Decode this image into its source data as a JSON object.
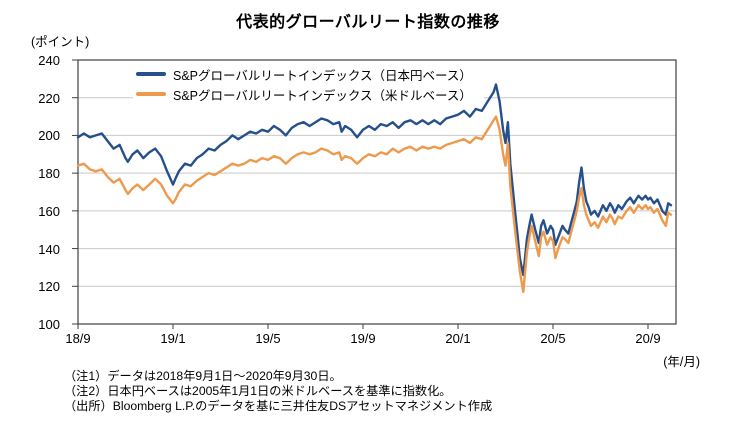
{
  "title": "代表的グローバルリート指数の推移",
  "y_unit_label": "(ポイント)",
  "x_unit_label": "(年/月)",
  "notes": [
    "（注1）データは2018年9月1日～2020年9月30日。",
    "（注2）日本円ベースは2005年1月1日の米ドルベースを基準に指数化。",
    "（出所）Bloomberg L.P.のデータを基に三井住友DSアセットマネジメント作成"
  ],
  "colors": {
    "jpy_line": "#26508B",
    "usd_line": "#EE9A4D",
    "grid": "#C9C9C9",
    "axis_border": "#3F3F3F",
    "text": "#000000"
  },
  "chart_data": {
    "type": "line",
    "title": "代表的グローバルリート指数の推移",
    "ylabel": "ポイント",
    "xlabel": "年/月",
    "ylim": [
      100,
      240
    ],
    "y_ticks": [
      100,
      120,
      140,
      160,
      180,
      200,
      220,
      240
    ],
    "x_tick_labels": [
      "18/9",
      "19/1",
      "19/5",
      "19/9",
      "20/1",
      "20/5",
      "20/9"
    ],
    "x_tick_months": [
      0,
      4,
      8,
      12,
      16,
      20,
      24
    ],
    "x_unit_note": "months since 2018/9/1",
    "grid": "horizontal",
    "legend_position": "top-inside",
    "x": [
      0,
      0.25,
      0.5,
      0.75,
      1,
      1.25,
      1.5,
      1.75,
      2,
      2.1,
      2.3,
      2.5,
      2.75,
      3,
      3.25,
      3.5,
      3.75,
      4,
      4.1,
      4.25,
      4.5,
      4.75,
      5,
      5.25,
      5.5,
      5.75,
      6,
      6.25,
      6.5,
      6.75,
      7,
      7.25,
      7.5,
      7.75,
      8,
      8.25,
      8.5,
      8.75,
      9,
      9.25,
      9.5,
      9.75,
      10,
      10.25,
      10.5,
      10.75,
      11,
      11.1,
      11.25,
      11.5,
      11.75,
      12,
      12.25,
      12.5,
      12.75,
      13,
      13.25,
      13.5,
      13.75,
      14,
      14.25,
      14.5,
      14.75,
      15,
      15.25,
      15.5,
      15.75,
      16,
      16.25,
      16.5,
      16.75,
      17,
      17.25,
      17.5,
      17.6,
      17.75,
      17.9,
      18,
      18.1,
      18.2,
      18.4,
      18.5,
      18.6,
      18.75,
      18.9,
      19,
      19.1,
      19.25,
      19.4,
      19.5,
      19.6,
      19.75,
      19.9,
      20,
      20.1,
      20.25,
      20.4,
      20.5,
      20.65,
      20.75,
      20.9,
      21,
      21.1,
      21.2,
      21.3,
      21.4,
      21.5,
      21.6,
      21.75,
      21.9,
      22,
      22.1,
      22.25,
      22.4,
      22.5,
      22.6,
      22.75,
      22.9,
      23,
      23.1,
      23.25,
      23.4,
      23.5,
      23.6,
      23.75,
      23.9,
      24,
      24.1,
      24.25,
      24.4,
      24.5,
      24.6,
      24.75,
      24.85,
      24.97
    ],
    "series": [
      {
        "name": "S&Pグローバルリートインデックス（日本円ベース）",
        "color": "#26508B",
        "values": [
          199,
          201,
          199,
          200,
          201,
          197,
          193,
          195,
          188,
          186,
          190,
          192,
          188,
          191,
          193,
          189,
          181,
          174,
          177,
          181,
          185,
          184,
          188,
          190,
          193,
          192,
          195,
          197,
          200,
          198,
          200,
          202,
          201,
          203,
          202,
          205,
          203,
          200,
          204,
          206,
          207,
          205,
          207,
          209,
          208,
          206,
          207,
          202,
          205,
          203,
          199,
          203,
          205,
          203,
          206,
          205,
          207,
          204,
          207,
          208,
          206,
          208,
          206,
          208,
          206,
          209,
          210,
          211,
          213,
          210,
          214,
          213,
          218,
          223,
          227,
          218,
          203,
          196,
          207,
          185,
          160,
          148,
          135,
          126,
          145,
          152,
          158,
          150,
          143,
          152,
          155,
          148,
          152,
          150,
          142,
          147,
          152,
          150,
          148,
          153,
          160,
          165,
          175,
          183,
          172,
          165,
          162,
          158,
          160,
          157,
          160,
          163,
          160,
          164,
          162,
          159,
          163,
          161,
          163,
          165,
          167,
          164,
          166,
          168,
          166,
          168,
          166,
          167,
          164,
          166,
          163,
          160,
          158,
          164,
          163
        ]
      },
      {
        "name": "S&Pグローバルリートインデックス（米ドルベース）",
        "color": "#EE9A4D",
        "values": [
          184,
          185,
          182,
          181,
          182,
          178,
          175,
          177,
          171,
          169,
          172,
          174,
          171,
          174,
          177,
          174,
          168,
          164,
          166,
          170,
          174,
          173,
          176,
          178,
          180,
          179,
          181,
          183,
          185,
          184,
          185,
          187,
          186,
          188,
          187,
          189,
          188,
          185,
          188,
          190,
          191,
          190,
          191,
          193,
          192,
          190,
          191,
          187,
          189,
          188,
          185,
          188,
          190,
          189,
          191,
          190,
          193,
          191,
          193,
          194,
          192,
          194,
          193,
          194,
          193,
          195,
          196,
          197,
          198,
          196,
          199,
          198,
          203,
          208,
          210,
          203,
          190,
          184,
          196,
          173,
          150,
          139,
          128,
          117,
          138,
          146,
          152,
          144,
          136,
          146,
          149,
          142,
          146,
          144,
          135,
          141,
          146,
          145,
          143,
          148,
          155,
          160,
          167,
          172,
          163,
          158,
          155,
          152,
          154,
          151,
          154,
          157,
          154,
          158,
          156,
          153,
          157,
          156,
          158,
          160,
          162,
          159,
          161,
          163,
          161,
          163,
          161,
          162,
          159,
          161,
          158,
          155,
          152,
          159,
          158
        ]
      }
    ]
  }
}
